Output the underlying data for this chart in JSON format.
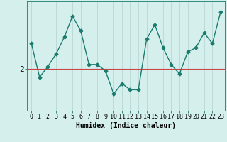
{
  "x": [
    0,
    1,
    2,
    3,
    4,
    5,
    6,
    7,
    8,
    9,
    10,
    11,
    12,
    13,
    14,
    15,
    16,
    17,
    18,
    19,
    20,
    21,
    22,
    23
  ],
  "y": [
    3.2,
    1.6,
    2.1,
    2.7,
    3.5,
    4.5,
    3.8,
    2.2,
    2.2,
    1.9,
    0.8,
    1.3,
    1.0,
    1.0,
    3.4,
    4.1,
    3.0,
    2.2,
    1.75,
    2.8,
    3.0,
    3.7,
    3.2,
    4.7
  ],
  "line_color": "#1a7a6e",
  "marker": "D",
  "marker_size": 2.5,
  "hline_y": 2,
  "hline_color": "#cc4444",
  "bg_color": "#d4efec",
  "grid_color": "#b8d8d5",
  "xlabel": "Humidex (Indice chaleur)",
  "ylabel": "2",
  "xlim": [
    -0.5,
    23.5
  ],
  "ylim": [
    0.0,
    5.2
  ],
  "label_fontsize": 7,
  "tick_fontsize": 6,
  "figsize": [
    3.2,
    2.0
  ],
  "dpi": 100
}
